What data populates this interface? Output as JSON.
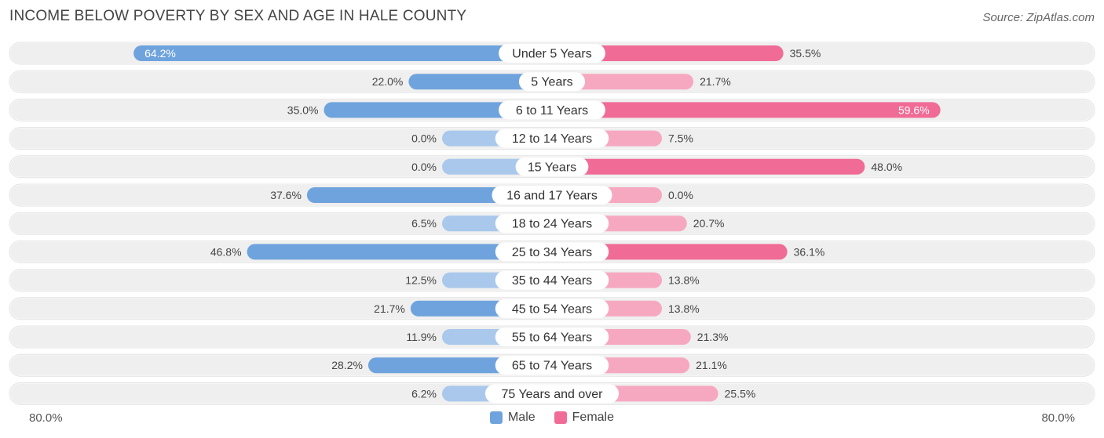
{
  "title": "INCOME BELOW POVERTY BY SEX AND AGE IN HALE COUNTY",
  "source": "Source: ZipAtlas.com",
  "axis": {
    "left_label": "80.0%",
    "right_label": "80.0%"
  },
  "legend": {
    "male_label": "Male",
    "female_label": "Female"
  },
  "colors": {
    "male": "#6fa3dd",
    "male_light": "#a9c8ec",
    "female": "#f06b96",
    "female_light": "#f7a8c1",
    "track": "#efefef"
  },
  "chart_data": {
    "type": "bar",
    "orientation": "horizontal-diverging",
    "xlim": [
      -80,
      80
    ],
    "categories": [
      "Under 5 Years",
      "5 Years",
      "6 to 11 Years",
      "12 to 14 Years",
      "15 Years",
      "16 and 17 Years",
      "18 to 24 Years",
      "25 to 34 Years",
      "35 to 44 Years",
      "45 to 54 Years",
      "55 to 64 Years",
      "65 to 74 Years",
      "75 Years and over"
    ],
    "series": [
      {
        "name": "Male",
        "values": [
          64.2,
          22.0,
          35.0,
          0.0,
          0.0,
          37.6,
          6.5,
          46.8,
          12.5,
          21.7,
          11.9,
          28.2,
          6.2
        ]
      },
      {
        "name": "Female",
        "values": [
          35.5,
          21.7,
          59.6,
          7.5,
          48.0,
          0.0,
          20.7,
          36.1,
          13.8,
          13.8,
          21.3,
          21.1,
          25.5
        ]
      }
    ],
    "male_labels": [
      "64.2%",
      "22.0%",
      "35.0%",
      "0.0%",
      "0.0%",
      "37.6%",
      "6.5%",
      "46.8%",
      "12.5%",
      "21.7%",
      "11.9%",
      "28.2%",
      "6.2%"
    ],
    "female_labels": [
      "35.5%",
      "21.7%",
      "59.6%",
      "7.5%",
      "48.0%",
      "0.0%",
      "20.7%",
      "36.1%",
      "13.8%",
      "13.8%",
      "21.3%",
      "21.1%",
      "25.5%"
    ]
  }
}
